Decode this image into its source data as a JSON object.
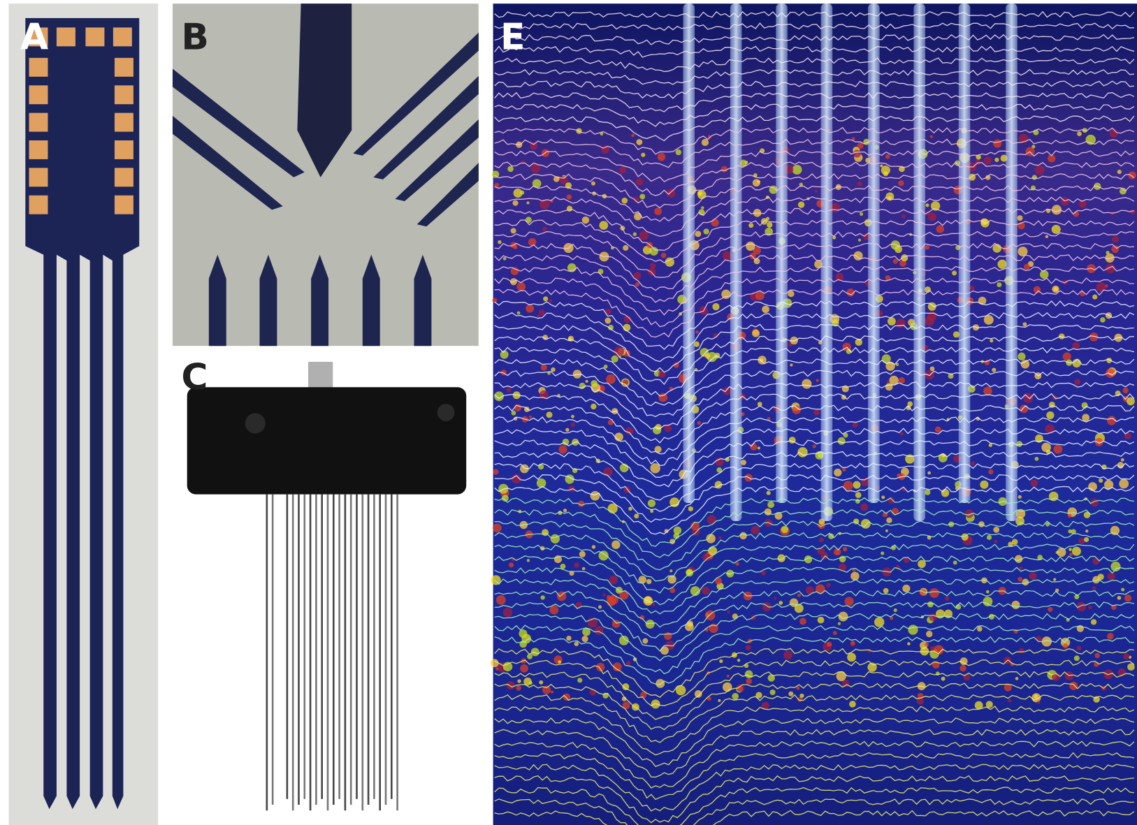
{
  "panels": [
    {
      "label": "A"
    },
    {
      "label": "B"
    },
    {
      "label": "C"
    },
    {
      "label": "E"
    }
  ]
}
